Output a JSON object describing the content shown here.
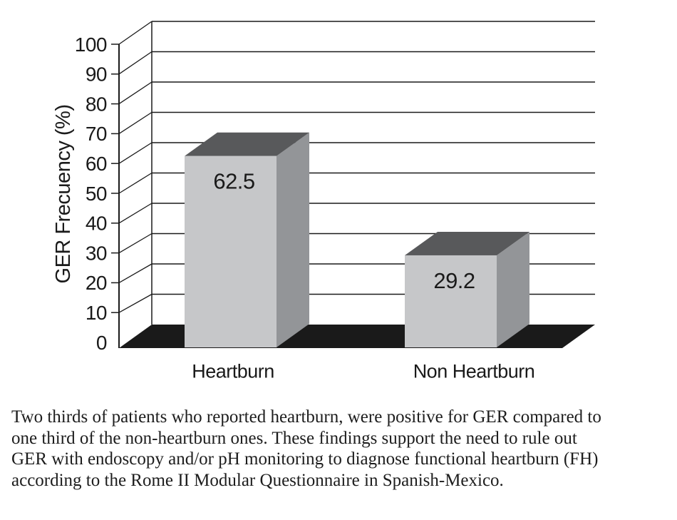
{
  "chart_data": {
    "type": "bar",
    "style": "3d",
    "title": "",
    "categories": [
      "Heartburn",
      "Non Heartburn"
    ],
    "values": [
      62.5,
      29.2
    ],
    "value_labels": [
      "62.5",
      "29.2"
    ],
    "xlabel": "",
    "ylabel": "GER Frecuency (%)",
    "ylim": [
      0,
      100
    ],
    "yticks": [
      0,
      10,
      20,
      30,
      40,
      50,
      60,
      70,
      80,
      90,
      100
    ],
    "grid": true,
    "legend": false,
    "colors": {
      "bar_front": "#c6c7c9",
      "bar_top": "#58595b",
      "bar_side": "#939598",
      "floor": "#1a1a1a",
      "line": "#1a1a1a",
      "text": "#1a1a1a",
      "background": "#ffffff"
    }
  },
  "caption": {
    "lines": [
      "Two thirds of patients who reported heartburn, were positive for GER compared to",
      "one third of the non-heartburn ones. These findings support the need to rule out",
      "GER with endoscopy and/or pH monitoring to diagnose functional heartburn (FH)",
      "according to the Rome II Modular Questionnaire in Spanish-Mexico."
    ]
  }
}
